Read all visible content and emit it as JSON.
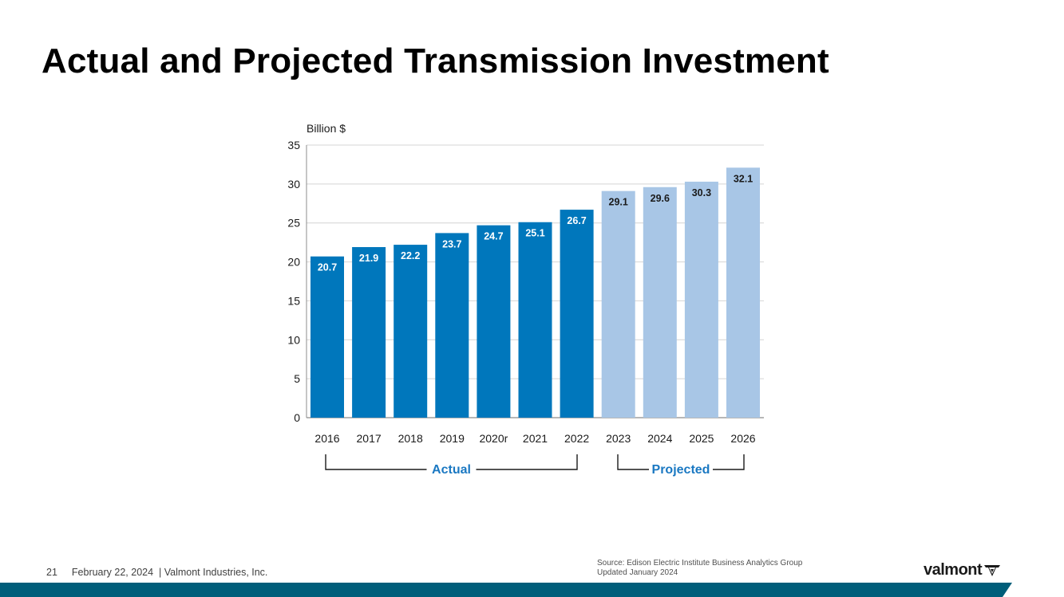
{
  "slide": {
    "title": "Actual and Projected Transmission Investment",
    "page_number": "21",
    "footer_text": "February 22, 2024  | Valmont Industries, Inc.",
    "source_line1": "Source: Edison Electric Institute Business Analytics Group",
    "source_line2": "Updated January 2024",
    "logo_text": "valmont",
    "logo_icon": "valmont-v-icon",
    "bar_color": "#005e7a"
  },
  "chart_data": {
    "type": "bar",
    "ylabel": "Billion $",
    "ylim": [
      0,
      35
    ],
    "yticks": [
      0,
      5,
      10,
      15,
      20,
      25,
      30,
      35
    ],
    "grid": true,
    "categories": [
      "2016",
      "2017",
      "2018",
      "2019",
      "2020r",
      "2021",
      "2022",
      "2023",
      "2024",
      "2025",
      "2026"
    ],
    "values": [
      20.7,
      21.9,
      22.2,
      23.7,
      24.7,
      25.1,
      26.7,
      29.1,
      29.6,
      30.3,
      32.1
    ],
    "data_labels": [
      "20.7",
      "21.9",
      "22.2",
      "23.7",
      "24.7",
      "25.1",
      "26.7",
      "29.1",
      "29.6",
      "30.3",
      "32.1"
    ],
    "series": [
      {
        "name": "Actual",
        "categories": [
          "2016",
          "2017",
          "2018",
          "2019",
          "2020r",
          "2021",
          "2022"
        ],
        "color": "#0077bc",
        "label_color": "#ffffff"
      },
      {
        "name": "Projected",
        "categories": [
          "2023",
          "2024",
          "2025",
          "2026"
        ],
        "color": "#a8c6e6",
        "label_color": "#1a1a1a"
      }
    ],
    "group_labels": [
      "Actual",
      "Projected"
    ],
    "group_label_color": "#1a78c2"
  }
}
